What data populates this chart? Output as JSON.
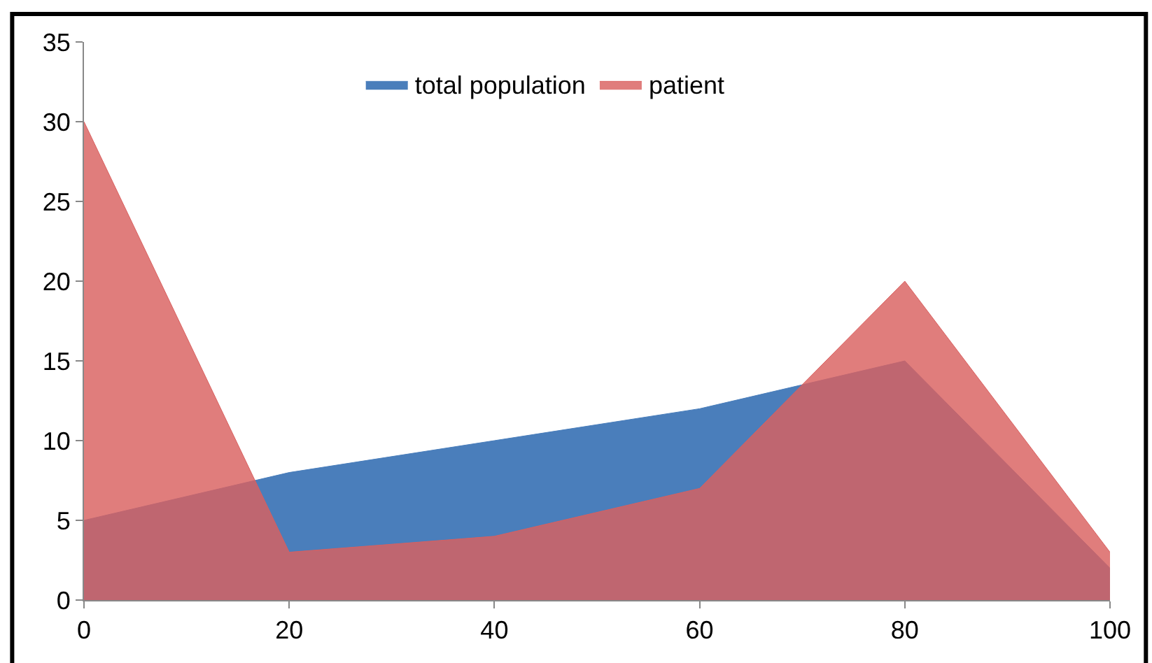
{
  "chart_data": {
    "type": "area",
    "x": [
      0,
      20,
      40,
      60,
      80,
      100
    ],
    "series": [
      {
        "name": "total population",
        "color": "#4a7ebb",
        "values": [
          5,
          8,
          10,
          12,
          15,
          2
        ]
      },
      {
        "name": "patient",
        "color": "#d9605f",
        "values": [
          30,
          3,
          4,
          7,
          20,
          3
        ]
      }
    ],
    "xlim": [
      0,
      100
    ],
    "xticks": [
      0,
      20,
      40,
      60,
      80,
      100
    ],
    "ylim": [
      0,
      35
    ],
    "yticks": [
      0,
      5,
      10,
      15,
      20,
      25,
      30,
      35
    ],
    "legend": "top",
    "marker": "none"
  }
}
